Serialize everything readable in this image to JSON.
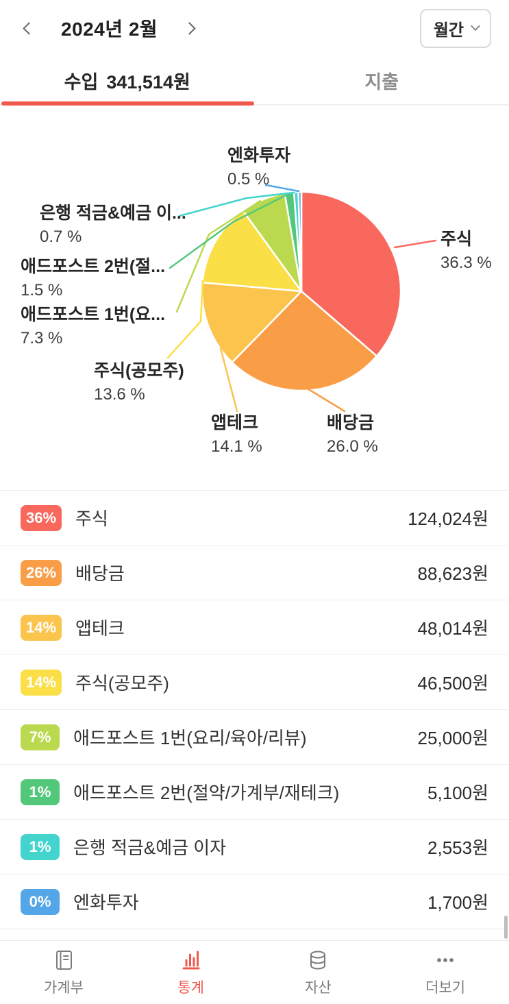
{
  "header": {
    "title": "2024년 2월",
    "prev_icon": "chevron-left",
    "next_icon": "chevron-right",
    "period_button": {
      "label": "월간",
      "icon": "chevron-down"
    }
  },
  "tabs": {
    "income": {
      "label": "수입",
      "amount": "341,514원"
    },
    "expense": {
      "label": "지출"
    }
  },
  "chart_data": {
    "type": "pie",
    "unit": "원",
    "total": 341514,
    "total_label": "341,514원",
    "start_angle": "top",
    "direction": "clockwise",
    "legend_position": "around-labels",
    "slices": [
      {
        "name": "주식",
        "chart_label": "주식",
        "percent": 36.3,
        "percent_label": "36.3 %",
        "badge": "36%",
        "value": 124024,
        "amount": "124,024원",
        "color": "#F9685C"
      },
      {
        "name": "배당금",
        "chart_label": "배당금",
        "percent": 26.0,
        "percent_label": "26.0 %",
        "badge": "26%",
        "value": 88623,
        "amount": "88,623원",
        "color": "#F99D47"
      },
      {
        "name": "앱테크",
        "chart_label": "앱테크",
        "percent": 14.1,
        "percent_label": "14.1 %",
        "badge": "14%",
        "value": 48014,
        "amount": "48,014원",
        "color": "#FBC44D"
      },
      {
        "name": "주식(공모주)",
        "chart_label": "주식(공모주)",
        "percent": 13.6,
        "percent_label": "13.6 %",
        "badge": "14%",
        "value": 46500,
        "amount": "46,500원",
        "color": "#FBDF47"
      },
      {
        "name": "애드포스트 1번(요리/육아/리뷰)",
        "chart_label": "애드포스트 1번(요...",
        "percent": 7.3,
        "percent_label": "7.3 %",
        "badge": "7%",
        "value": 25000,
        "amount": "25,000원",
        "color": "#BBD94E"
      },
      {
        "name": "애드포스트 2번(절약/가계부/재테크)",
        "chart_label": "애드포스트 2번(절...",
        "percent": 1.5,
        "percent_label": "1.5 %",
        "badge": "1%",
        "value": 5100,
        "amount": "5,100원",
        "color": "#53C87B"
      },
      {
        "name": "은행 적금&예금 이자",
        "chart_label": "은행 적금&예금 이...",
        "percent": 0.7,
        "percent_label": "0.7 %",
        "badge": "1%",
        "value": 2553,
        "amount": "2,553원",
        "color": "#44D4CE"
      },
      {
        "name": "엔화투자",
        "chart_label": "엔화투자",
        "percent": 0.5,
        "percent_label": "0.5 %",
        "badge": "0%",
        "value": 1700,
        "amount": "1,700원",
        "color": "#55A6E8"
      }
    ]
  },
  "bottom_nav": {
    "items": [
      {
        "label": "가계부",
        "icon": "ledger-icon",
        "active": false
      },
      {
        "label": "통계",
        "icon": "stats-icon",
        "active": true
      },
      {
        "label": "자산",
        "icon": "assets-icon",
        "active": false
      },
      {
        "label": "더보기",
        "icon": "more-icon",
        "active": false
      }
    ]
  },
  "colors": {
    "accent": "#F1594F",
    "divider": "#ededed",
    "inactive_text": "#8f8f8f"
  }
}
